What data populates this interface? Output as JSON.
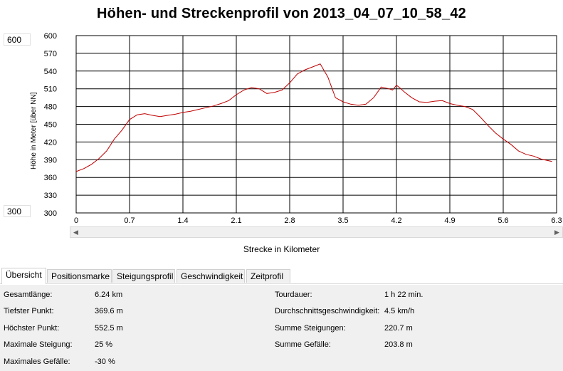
{
  "title": "Höhen- und Streckenprofil von 2013_04_07_10_58_42",
  "side_values": {
    "max": "600",
    "min": "300"
  },
  "chart_data": {
    "type": "line",
    "title": "Höhen- und Streckenprofil von 2013_04_07_10_58_42",
    "xlabel": "Strecke in Kilometer",
    "ylabel": "Höhe in Meter [über NN]",
    "xlim": [
      0,
      6.3
    ],
    "ylim": [
      300,
      600
    ],
    "grid": true,
    "x_ticks": [
      "0",
      "0.7",
      "1.4",
      "2.1",
      "2.8",
      "3.5",
      "4.2",
      "4.9",
      "5.6",
      "6.3"
    ],
    "y_ticks": [
      "600",
      "570",
      "540",
      "510",
      "480",
      "450",
      "420",
      "390",
      "360",
      "330",
      "300"
    ],
    "line_color": "#c00000",
    "series": [
      {
        "x": [
          0,
          0.1,
          0.2,
          0.3,
          0.4,
          0.5,
          0.6,
          0.7,
          0.8,
          0.9,
          1.0,
          1.1,
          1.2,
          1.3,
          1.4,
          1.5,
          1.6,
          1.7,
          1.8,
          1.9,
          2.0,
          2.1,
          2.2,
          2.3,
          2.4,
          2.5,
          2.6,
          2.7,
          2.8,
          2.9,
          3.0,
          3.1,
          3.2,
          3.3,
          3.4,
          3.5,
          3.6,
          3.7,
          3.8,
          3.9,
          4.0,
          4.1,
          4.15,
          4.2,
          4.25,
          4.3,
          4.4,
          4.5,
          4.6,
          4.7,
          4.8,
          4.9,
          5.0,
          5.1,
          5.2,
          5.3,
          5.4,
          5.5,
          5.6,
          5.7,
          5.8,
          5.9,
          6.0,
          6.1,
          6.24
        ],
        "values": [
          370,
          375,
          382,
          392,
          405,
          425,
          440,
          458,
          466,
          468,
          465,
          463,
          465,
          467,
          470,
          472,
          475,
          478,
          481,
          485,
          490,
          500,
          508,
          512,
          510,
          502,
          504,
          508,
          520,
          535,
          542,
          547,
          552,
          530,
          495,
          488,
          484,
          482,
          484,
          495,
          513,
          510,
          508,
          516,
          511,
          505,
          495,
          488,
          487,
          489,
          490,
          485,
          482,
          480,
          475,
          462,
          448,
          435,
          425,
          416,
          405,
          399,
          396,
          391,
          387
        ]
      }
    ]
  },
  "tabs": [
    "Übersicht",
    "Positionsmarke",
    "Steigungsprofil",
    "Geschwindigkeit",
    "Zeitprofil"
  ],
  "stats_left": [
    {
      "label": "Gesamtlänge:",
      "value": "6.24 km"
    },
    {
      "label": "Tiefster Punkt:",
      "value": "369.6 m"
    },
    {
      "label": "Höchster Punkt:",
      "value": "552.5 m"
    },
    {
      "label": "Maximale Steigung:",
      "value": "25 %"
    },
    {
      "label": "Maximales Gefälle:",
      "value": "-30 %"
    }
  ],
  "stats_right": [
    {
      "label": "Tourdauer:",
      "value": "1 h 22 min."
    },
    {
      "label": "Durchschnittsgeschwindigkeit:",
      "value": "4.5 km/h"
    },
    {
      "label": "Summe Steigungen:",
      "value": "220.7 m"
    },
    {
      "label": "Summe Gefälle:",
      "value": "203.8 m"
    }
  ]
}
